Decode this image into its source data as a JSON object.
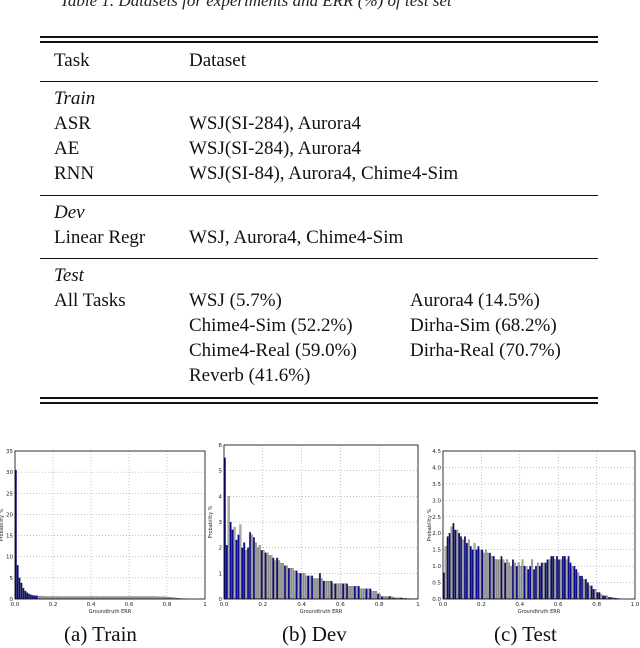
{
  "top_caption": "Table 1. Datasets for experiments and ERR (%) of test set",
  "table": {
    "headers": [
      "Task",
      "Dataset"
    ],
    "sections": [
      {
        "title": "Train",
        "rows": [
          {
            "task": "ASR",
            "dataset": "WSJ(SI-284), Aurora4"
          },
          {
            "task": "AE",
            "dataset": "WSJ(SI-284), Aurora4"
          },
          {
            "task": "RNN",
            "dataset": "WSJ(SI-84), Aurora4, Chime4-Sim"
          }
        ]
      },
      {
        "title": "Dev",
        "rows": [
          {
            "task": "Linear Regr",
            "dataset": "WSJ, Aurora4, Chime4-Sim"
          }
        ]
      },
      {
        "title": "Test",
        "task": "All Tasks",
        "items": [
          [
            "WSJ (5.7%)",
            "Aurora4 (14.5%)"
          ],
          [
            "Chime4-Sim (52.2%)",
            "Dirha-Sim (68.2%)"
          ],
          [
            "Chime4-Real (59.0%)",
            "Dirha-Real (70.7%)"
          ],
          [
            "Reverb (41.6%)",
            ""
          ]
        ]
      }
    ]
  },
  "colors": {
    "blue": "#0a0a8c",
    "gray": "#a8a8a8",
    "grid": "#888888"
  },
  "chart_data": [
    {
      "type": "bar",
      "subcaption": "(a) Train",
      "xlabel": "Groundtruth ERR",
      "ylabel": "Probability %",
      "xlim": [
        0,
        1
      ],
      "ylim": [
        0,
        35
      ],
      "xticks": [
        "0.0",
        "0.2",
        "0.4",
        "0.6",
        "0.8",
        "1"
      ],
      "yticks": [
        "0",
        "5",
        "10",
        "15",
        "20",
        "25",
        "30",
        "35"
      ],
      "ytick_values": [
        0,
        5,
        10,
        15,
        20,
        25,
        30,
        35
      ],
      "bin_width": 0.01,
      "values": [
        30.5,
        8,
        5,
        3.8,
        2.6,
        1.9,
        1.5,
        1.2,
        1.0,
        0.9,
        0.8,
        0.8,
        0.7,
        0.7,
        0.7,
        0.6,
        0.6,
        0.6,
        0.6,
        0.6,
        0.6,
        0.6,
        0.6,
        0.6,
        0.6,
        0.6,
        0.6,
        0.6,
        0.6,
        0.6,
        0.6,
        0.6,
        0.6,
        0.6,
        0.6,
        0.6,
        0.6,
        0.6,
        0.6,
        0.6,
        0.6,
        0.6,
        0.6,
        0.6,
        0.6,
        0.6,
        0.6,
        0.6,
        0.6,
        0.6,
        0.6,
        0.6,
        0.6,
        0.6,
        0.6,
        0.6,
        0.6,
        0.6,
        0.6,
        0.6,
        0.6,
        0.6,
        0.6,
        0.6,
        0.6,
        0.6,
        0.6,
        0.6,
        0.6,
        0.6,
        0.6,
        0.6,
        0.6,
        0.6,
        0.6,
        0.5,
        0.5,
        0.5,
        0.5,
        0.5,
        0.4,
        0.4,
        0.4,
        0.3,
        0.3,
        0.2,
        0.2,
        0.1,
        0.1,
        0.1
      ]
    },
    {
      "type": "bar",
      "subcaption": "(b) Dev",
      "xlabel": "Groundtruth ERR",
      "ylabel": "Probability %",
      "xlim": [
        0,
        1
      ],
      "ylim": [
        0,
        6
      ],
      "xticks": [
        "0.0",
        "0.2",
        "0.4",
        "0.6",
        "0.8",
        "1"
      ],
      "yticks": [
        "0",
        "1",
        "2",
        "3",
        "4",
        "5",
        "6"
      ],
      "ytick_values": [
        0,
        1,
        2,
        3,
        4,
        5,
        6
      ],
      "bin_width": 0.01,
      "values": [
        5.5,
        2.1,
        4.0,
        3.0,
        2.7,
        2.8,
        2.3,
        2.5,
        2.9,
        2.0,
        2.2,
        1.9,
        2.0,
        2.6,
        2.5,
        2.4,
        2.2,
        2.0,
        2.1,
        1.9,
        1.9,
        1.8,
        1.8,
        1.7,
        1.7,
        1.6,
        1.5,
        1.6,
        1.5,
        1.4,
        1.4,
        1.3,
        1.3,
        1.2,
        1.2,
        1.2,
        1.1,
        1.1,
        1.0,
        1.0,
        1.0,
        1.0,
        0.9,
        0.9,
        0.9,
        0.9,
        0.8,
        0.8,
        0.8,
        1.0,
        0.8,
        0.7,
        0.7,
        0.7,
        0.7,
        0.7,
        0.6,
        0.6,
        0.6,
        0.6,
        0.6,
        0.6,
        0.6,
        0.6,
        0.5,
        0.5,
        0.5,
        0.5,
        0.5,
        0.5,
        0.4,
        0.4,
        0.4,
        0.4,
        0.4,
        0.4,
        0.3,
        0.3,
        0.3,
        0.2,
        0.2,
        0.1,
        0.1,
        0.1,
        0.1,
        0.1,
        0.1,
        0.05,
        0.05,
        0.05,
        0.05,
        0.05,
        0.03,
        0.03,
        0.02,
        0.02,
        0.01,
        0.01,
        0.01,
        0.01
      ]
    },
    {
      "type": "bar",
      "subcaption": "(c) Test",
      "xlabel": "Groundtruth ERR",
      "ylabel": "Probability %",
      "xlim": [
        0,
        1
      ],
      "ylim": [
        0,
        4.5
      ],
      "xticks": [
        "0.0",
        "0.2",
        "0.4",
        "0.6",
        "0.8",
        "1.0"
      ],
      "yticks": [
        "0.0",
        "0.5",
        "1.0",
        "1.5",
        "2.0",
        "2.5",
        "3.0",
        "3.5",
        "4.0",
        "4.5"
      ],
      "ytick_values": [
        0,
        0.5,
        1.0,
        1.5,
        2.0,
        2.5,
        3.0,
        3.5,
        4.0,
        4.5
      ],
      "bin_width": 0.01,
      "values": [
        0.8,
        1.6,
        1.9,
        2.0,
        2.2,
        2.3,
        2.1,
        2.1,
        2.0,
        1.9,
        1.8,
        1.9,
        1.7,
        1.8,
        1.6,
        1.5,
        1.7,
        1.5,
        1.6,
        1.5,
        1.5,
        1.4,
        1.5,
        1.4,
        1.4,
        1.3,
        1.3,
        1.2,
        1.2,
        1.2,
        1.3,
        1.2,
        1.1,
        1.2,
        1.1,
        1.0,
        1.2,
        1.1,
        1.0,
        1.1,
        1.0,
        1.2,
        1.0,
        1.0,
        0.9,
        1.0,
        1.2,
        0.9,
        1.0,
        1.1,
        1.0,
        1.1,
        1.1,
        1.1,
        1.2,
        1.2,
        1.3,
        1.3,
        1.2,
        1.3,
        1.2,
        1.2,
        1.3,
        1.3,
        1.2,
        1.3,
        1.1,
        1.0,
        1.0,
        0.9,
        0.8,
        0.7,
        0.7,
        0.6,
        0.6,
        0.5,
        0.4,
        0.4,
        0.3,
        0.3,
        0.2,
        0.2,
        0.15,
        0.1,
        0.1,
        0.1,
        0.05,
        0.05,
        0.05,
        0.03,
        0.02,
        0.02
      ]
    }
  ]
}
